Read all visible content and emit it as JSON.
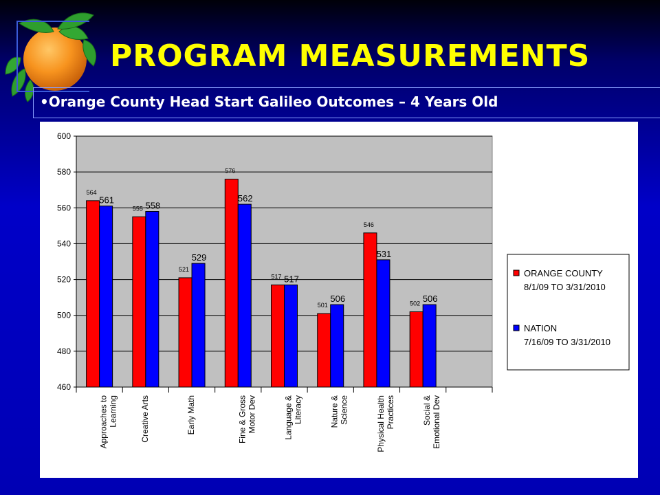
{
  "slide": {
    "title": "PROGRAM MEASUREMENTS",
    "subtitle": "•Orange County Head Start Galileo Outcomes – 4 Years Old"
  },
  "logo": {
    "icon": "orange-fruit-icon"
  },
  "colors": {
    "title": "#ffff00",
    "series_orange_county": "#ff0000",
    "series_nation": "#0000ff",
    "plot_background": "#c0c0c0"
  },
  "chart_data": {
    "type": "bar",
    "categories": [
      [
        "Approaches to",
        "Learning"
      ],
      [
        "Creative Arts"
      ],
      [
        "Early Math"
      ],
      [
        "Fine & Gross",
        "Motor Dev"
      ],
      [
        "Language &",
        "Literacy"
      ],
      [
        "Nature &",
        "Science"
      ],
      [
        "Physical Health",
        "Practices"
      ],
      [
        "Social &",
        "Emotional Dev"
      ]
    ],
    "series": [
      {
        "name": "ORANGE COUNTY\n8/1/09 TO 3/31/2010",
        "values": [
          564,
          555,
          521,
          576,
          517,
          501,
          546,
          502
        ]
      },
      {
        "name": "NATION\n7/16/09 TO 3/31/2010",
        "values": [
          561,
          558,
          529,
          562,
          517,
          506,
          531,
          506
        ]
      }
    ],
    "yticks": [
      460,
      480,
      500,
      520,
      540,
      560,
      580,
      600
    ],
    "ylim": [
      460,
      600
    ],
    "grid": true,
    "legend_position": "right",
    "xlabel": "",
    "ylabel": ""
  }
}
